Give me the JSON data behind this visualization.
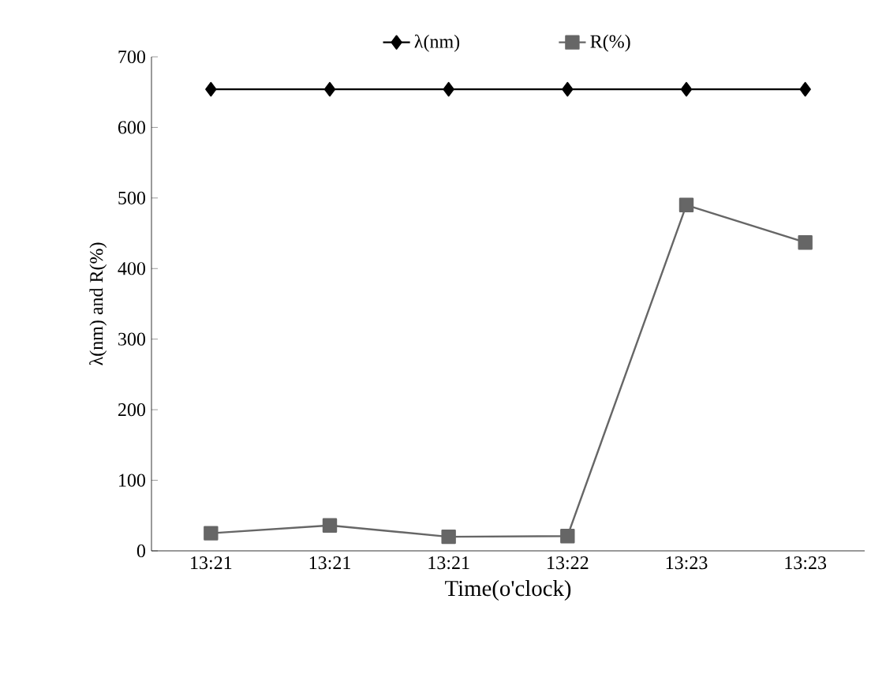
{
  "chart_data": {
    "type": "line",
    "xlabel": "Time(o'clock)",
    "ylabel": "λ(nm) and R(%)",
    "categories": [
      "13:21",
      "13:21",
      "13:21",
      "13:22",
      "13:23",
      "13:23"
    ],
    "series": [
      {
        "name": "λ(nm)",
        "color": "#000000",
        "marker": "diamond",
        "values": [
          654,
          654,
          654,
          654,
          654,
          654
        ]
      },
      {
        "name": "R(%)",
        "color": "#666666",
        "marker": "square",
        "values": [
          25,
          36,
          20,
          21,
          490,
          437
        ]
      }
    ],
    "ylim": [
      0,
      700
    ],
    "yticks": [
      0,
      100,
      200,
      300,
      400,
      500,
      600,
      700
    ],
    "grid": false,
    "legend": "top",
    "line_style": "solid"
  }
}
